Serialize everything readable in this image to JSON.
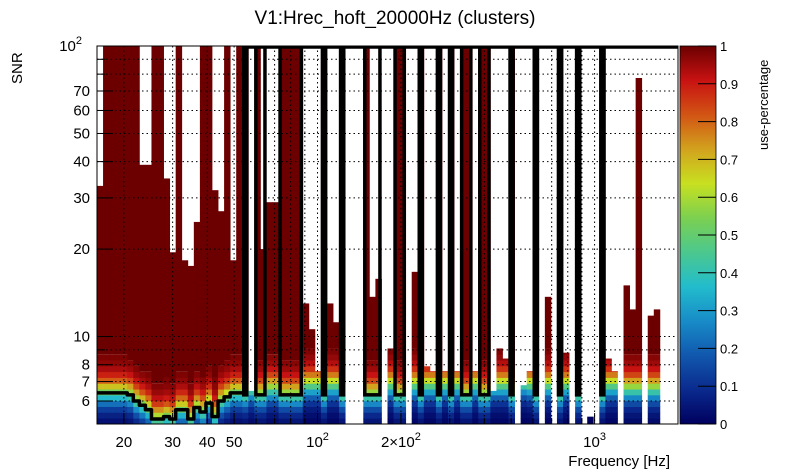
{
  "chart_data": {
    "type": "heatmap",
    "title": "V1:Hrec_hoft_20000Hz (clusters)",
    "xlabel": "Frequency [Hz]",
    "ylabel": "SNR",
    "zlabel": "use-percentage",
    "x_scale": "log",
    "y_scale": "log",
    "xlim": [
      16,
      2000
    ],
    "ylim": [
      5,
      100
    ],
    "zlim": [
      0,
      1
    ],
    "grid": true,
    "n_freq_bins": 96,
    "x_ticks": [
      {
        "value": 20,
        "label": "20",
        "exp": ""
      },
      {
        "value": 30,
        "label": "30",
        "exp": ""
      },
      {
        "value": 40,
        "label": "40",
        "exp": ""
      },
      {
        "value": 50,
        "label": "50",
        "exp": ""
      },
      {
        "value": 100,
        "label": "10",
        "exp": "2"
      },
      {
        "value": 200,
        "label": "2×10",
        "exp": "2"
      },
      {
        "value": 1000,
        "label": "10",
        "exp": "3"
      }
    ],
    "y_ticks": [
      {
        "value": 6,
        "label": "6",
        "exp": ""
      },
      {
        "value": 7,
        "label": "7",
        "exp": ""
      },
      {
        "value": 8,
        "label": "8",
        "exp": ""
      },
      {
        "value": 10,
        "label": "10",
        "exp": ""
      },
      {
        "value": 20,
        "label": "20",
        "exp": ""
      },
      {
        "value": 30,
        "label": "30",
        "exp": ""
      },
      {
        "value": 40,
        "label": "40",
        "exp": ""
      },
      {
        "value": 50,
        "label": "50",
        "exp": ""
      },
      {
        "value": 60,
        "label": "60",
        "exp": ""
      },
      {
        "value": 70,
        "label": "70",
        "exp": ""
      },
      {
        "value": 100,
        "label": "10",
        "exp": "2"
      }
    ],
    "z_ticks": [
      "0",
      "0.1",
      "0.2",
      "0.3",
      "0.4",
      "0.5",
      "0.6",
      "0.7",
      "0.8",
      "0.9",
      "1"
    ],
    "bin_max_snr": [
      33,
      100,
      100,
      100,
      100,
      100,
      100,
      39,
      39,
      100,
      100,
      35,
      19.5,
      100,
      18.3,
      17.5,
      24.8,
      100,
      100,
      31.9,
      27,
      100,
      18.3,
      100,
      100,
      6.5,
      100,
      20,
      29,
      29,
      100,
      100,
      100,
      100,
      13,
      10.6,
      7.6,
      100,
      13,
      11.2,
      100,
      0,
      0,
      0,
      100,
      13.7,
      15.8,
      0,
      9.1,
      100,
      100,
      0,
      16.7,
      100,
      7.9,
      7.6,
      100,
      7.6,
      100,
      7.6,
      100,
      100,
      7.6,
      100,
      100,
      6.5,
      9.1,
      8.4,
      100,
      0,
      6.8,
      7.6,
      100,
      0,
      13.7,
      0,
      100,
      8.8,
      0,
      100,
      0,
      5.3,
      0,
      100,
      8.4,
      7.6,
      0,
      15,
      12.4,
      77.6,
      0,
      11.8,
      12.4,
      0,
      0,
      0
    ],
    "bin_half_use_snr": [
      6.4,
      6.4,
      6.4,
      6.4,
      6.4,
      6.3,
      6.0,
      5.8,
      5.6,
      5.2,
      5.2,
      5.3,
      5.2,
      5.6,
      5.6,
      5.2,
      5.7,
      5.5,
      5.9,
      5.3,
      6.0,
      6.2,
      6.4,
      6.4,
      6.3,
      6.6,
      6.3,
      6.3,
      6.6,
      6.6,
      6.3,
      6.3,
      6.3,
      6.3,
      6.8,
      6.8,
      6.8,
      6.3,
      6.8,
      6.8,
      6.3,
      6.6,
      6.6,
      6.6,
      6.3,
      6.3,
      6.3,
      6.6,
      6.8,
      6.3,
      6.3,
      6.6,
      6.8,
      6.3,
      6.8,
      6.8,
      6.3,
      6.8,
      6.3,
      6.8,
      6.3,
      6.3,
      6.8,
      6.3,
      6.3,
      6.8,
      6.8,
      6.8,
      6.3,
      6.6,
      6.9,
      6.8,
      6.3,
      6.6,
      6.8,
      6.6,
      6.3,
      6.8,
      6.6,
      6.3,
      6.6,
      20,
      6.6,
      6.3,
      6.8,
      6.8,
      6.6,
      6.6,
      6.6,
      6.6,
      6.6,
      6.6,
      6.6,
      6.6,
      6.6,
      6.6
    ],
    "contour_bins": [
      24,
      26,
      27,
      30,
      31,
      32,
      33,
      37,
      40,
      44,
      45,
      46,
      49,
      50,
      53,
      56,
      58,
      60,
      61,
      63,
      64,
      68,
      72,
      76,
      79,
      83
    ],
    "colormap": [
      "#00005e",
      "#0a2a8e",
      "#1158ae",
      "#188cc8",
      "#22bccc",
      "#4cc88e",
      "#7cd050",
      "#c8e020",
      "#d2a21e",
      "#d25414",
      "#c81212",
      "#6c0000"
    ]
  }
}
